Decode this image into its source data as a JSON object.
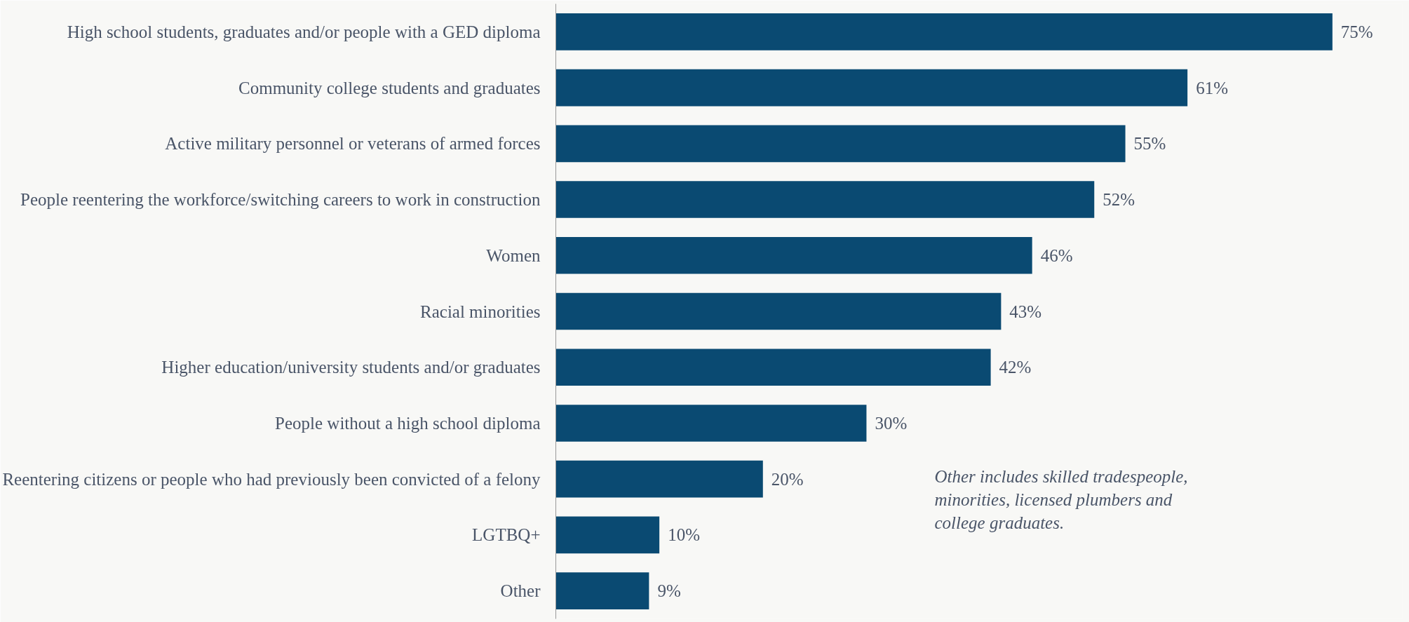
{
  "chart_data": {
    "type": "bar",
    "orientation": "horizontal",
    "categories": [
      "High school students, graduates and/or people with a GED diploma",
      "Community college students and graduates",
      "Active military personnel or veterans of armed forces",
      "People reentering the workforce/switching careers to work in construction",
      "Women",
      "Racial minorities",
      "Higher education/university students and/or graduates",
      "People without a high school diploma",
      "Reentering citizens or people who had previously been convicted of a felony",
      "LGTBQ+",
      "Other"
    ],
    "values": [
      75,
      61,
      55,
      52,
      46,
      43,
      42,
      30,
      20,
      10,
      9
    ],
    "value_labels": [
      "75%",
      "61%",
      "55%",
      "52%",
      "46%",
      "43%",
      "42%",
      "30%",
      "20%",
      "10%",
      "9%"
    ],
    "color": "#0a4a72",
    "annotations": [
      "Other includes skilled tradespeople, minorities, licensed plumbers and college graduates."
    ],
    "grid": false
  }
}
